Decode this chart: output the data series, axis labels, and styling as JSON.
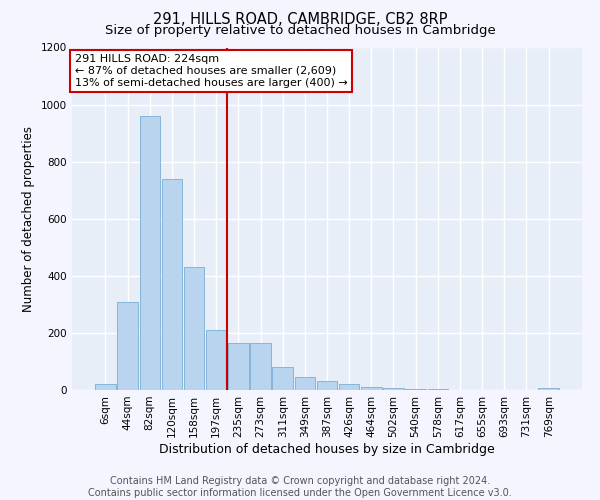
{
  "title": "291, HILLS ROAD, CAMBRIDGE, CB2 8RP",
  "subtitle": "Size of property relative to detached houses in Cambridge",
  "xlabel": "Distribution of detached houses by size in Cambridge",
  "ylabel": "Number of detached properties",
  "bar_color": "#b8d4ee",
  "bar_edge_color": "#7aaed4",
  "background_color": "#e8eef8",
  "grid_color": "#ffffff",
  "categories": [
    "6sqm",
    "44sqm",
    "82sqm",
    "120sqm",
    "158sqm",
    "197sqm",
    "235sqm",
    "273sqm",
    "311sqm",
    "349sqm",
    "387sqm",
    "426sqm",
    "464sqm",
    "502sqm",
    "540sqm",
    "578sqm",
    "617sqm",
    "655sqm",
    "693sqm",
    "731sqm",
    "769sqm"
  ],
  "values": [
    20,
    308,
    960,
    740,
    430,
    210,
    165,
    165,
    80,
    45,
    30,
    20,
    12,
    7,
    4,
    2,
    1,
    1,
    0,
    0,
    8
  ],
  "ylim": [
    0,
    1200
  ],
  "yticks": [
    0,
    200,
    400,
    600,
    800,
    1000,
    1200
  ],
  "property_line_x": 5.5,
  "property_line_color": "#cc0000",
  "annotation_text": "291 HILLS ROAD: 224sqm\n← 87% of detached houses are smaller (2,609)\n13% of semi-detached houses are larger (400) →",
  "annotation_box_color": "#cc0000",
  "footer_text": "Contains HM Land Registry data © Crown copyright and database right 2024.\nContains public sector information licensed under the Open Government Licence v3.0.",
  "title_fontsize": 10.5,
  "subtitle_fontsize": 9.5,
  "xlabel_fontsize": 9,
  "ylabel_fontsize": 8.5,
  "tick_fontsize": 7.5,
  "footer_fontsize": 7
}
